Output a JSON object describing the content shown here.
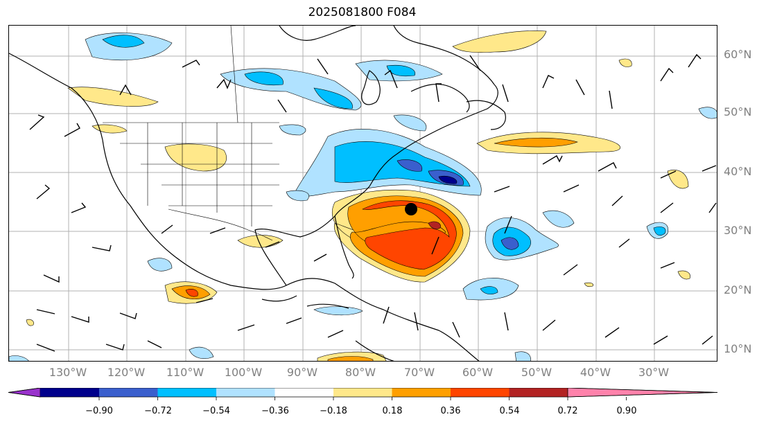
{
  "title": "2025081800 F084",
  "lat_labels": [
    "60°N",
    "50°N",
    "40°N",
    "30°N",
    "20°N",
    "10°N"
  ],
  "lon_labels": [
    "130°W",
    "120°W",
    "110°W",
    "100°W",
    "90°W",
    "80°W",
    "70°W",
    "60°W",
    "50°W",
    "40°W",
    "30°W"
  ],
  "colorbar": {
    "ticks": [
      "−0.90",
      "−0.72",
      "−0.54",
      "−0.36",
      "−0.18",
      "0.18",
      "0.36",
      "0.54",
      "0.72",
      "0.90"
    ],
    "colors": [
      "#9932CC",
      "#00008B",
      "#3A5FCD",
      "#00BFFF",
      "#B0E2FF",
      "#FFFFFF",
      "#FFE88A",
      "#FF9F00",
      "#FF4500",
      "#B22222",
      "#FF82AB"
    ],
    "extend": "both"
  },
  "colors": {
    "land_outline": "#000000",
    "grid": "#b0b0b0",
    "label_gray": "#808080"
  },
  "storm_center_marker": "black-dot"
}
